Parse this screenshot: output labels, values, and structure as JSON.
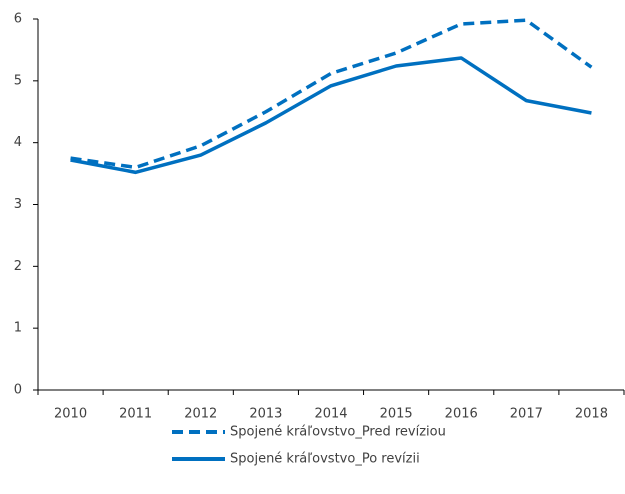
{
  "chart_data": {
    "type": "line",
    "categories": [
      "2010",
      "2011",
      "2012",
      "2013",
      "2014",
      "2015",
      "2016",
      "2017",
      "2018"
    ],
    "series": [
      {
        "name": "Spojené kráľovstvo_Pred revíziou",
        "color": "#0070c0",
        "dash": true,
        "values": [
          3.75,
          3.6,
          3.95,
          4.5,
          5.12,
          5.45,
          5.92,
          5.98,
          5.22
        ]
      },
      {
        "name": "Spojené kráľovstvo_Po revízii",
        "color": "#0070c0",
        "dash": false,
        "values": [
          3.72,
          3.52,
          3.8,
          4.32,
          4.92,
          5.24,
          5.37,
          4.68,
          4.48
        ]
      }
    ],
    "ylim": [
      0,
      6
    ],
    "yticks": [
      0,
      1,
      2,
      3,
      4,
      5,
      6
    ],
    "grid": false,
    "legend": "bottom"
  }
}
